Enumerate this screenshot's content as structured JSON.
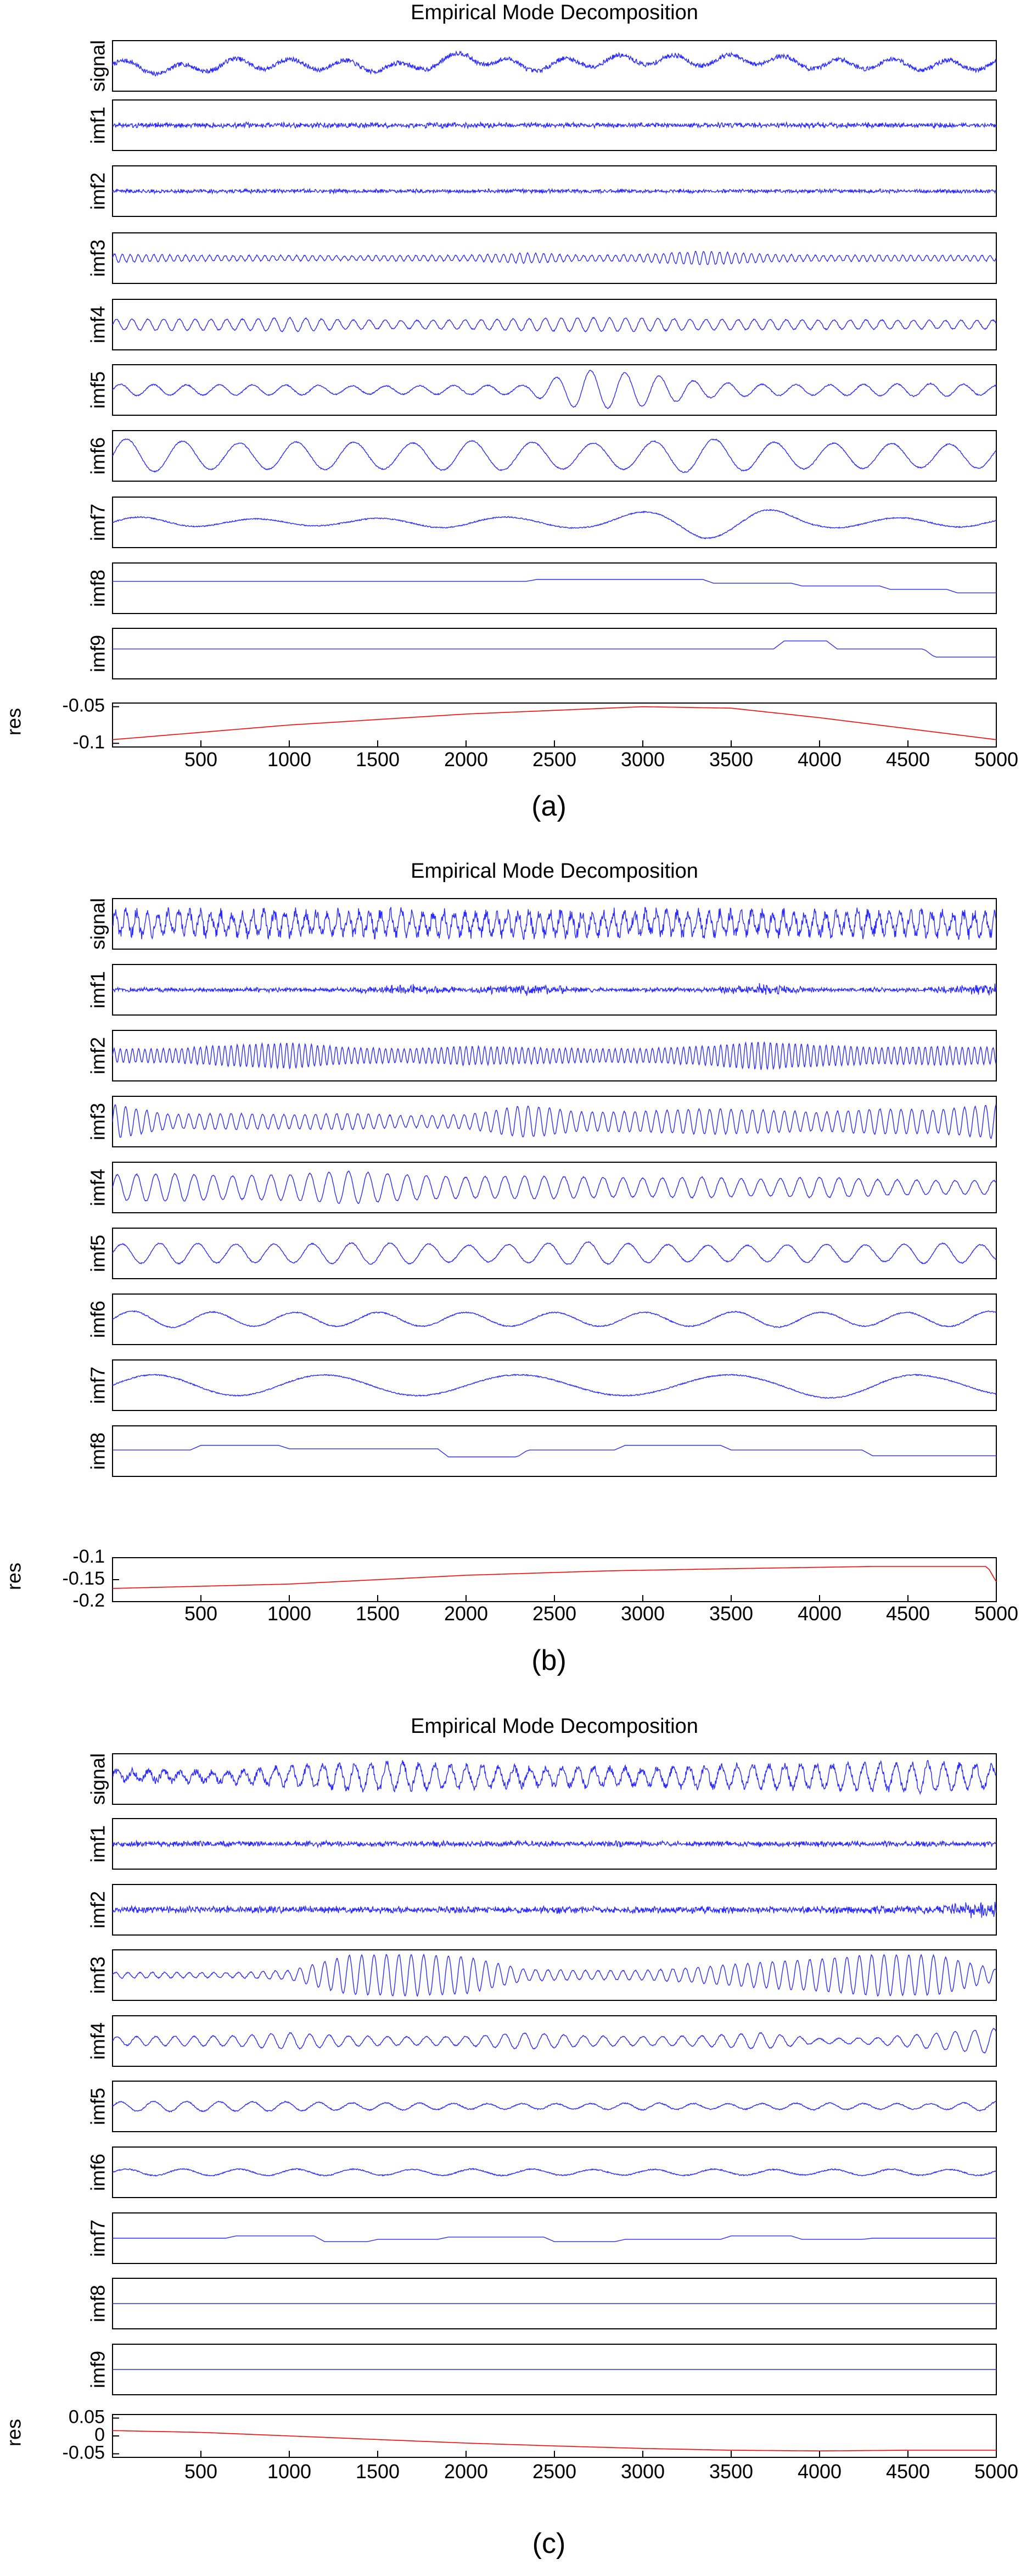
{
  "colors": {
    "trace": "#2a2aff",
    "residue": "#ff0000",
    "frame": "#000000"
  },
  "chart_data": [
    {
      "type": "line",
      "panel_label": "(a)",
      "title": "Empirical Mode Decomposition",
      "xlim": [
        0,
        5000
      ],
      "x_ticks": [
        "500",
        "1000",
        "1500",
        "2000",
        "2500",
        "3000",
        "3500",
        "4000",
        "4500",
        "5000"
      ],
      "series": [
        {
          "name": "signal",
          "kind": "signal",
          "level": [
            0.06,
            -0.2,
            0.1,
            0.08,
            0.02,
            -0.1,
            0.42,
            -0.05,
            0.18,
            0.28,
            0.22,
            0.3,
            0.05,
            0.1,
            0.02,
            0.05
          ],
          "osc": 0.22,
          "period": 310,
          "noise": 0.1
        },
        {
          "name": "imf1",
          "kind": "noise",
          "amp": 0.09
        },
        {
          "name": "imf2",
          "kind": "noise",
          "amp": 0.07
        },
        {
          "name": "imf3",
          "kind": "osc",
          "amp": [
            0.18,
            0.14,
            0.12,
            0.12,
            0.1,
            0.12,
            0.12,
            0.22,
            0.12,
            0.16,
            0.3,
            0.18,
            0.12,
            0.14,
            0.12,
            0.12
          ],
          "period": 45
        },
        {
          "name": "imf4",
          "kind": "osc",
          "amp": [
            0.22,
            0.25,
            0.22,
            0.3,
            0.2,
            0.18,
            0.2,
            0.25,
            0.3,
            0.28,
            0.22,
            0.22,
            0.2,
            0.2,
            0.18,
            0.2
          ],
          "period": 90
        },
        {
          "name": "imf5",
          "kind": "osc",
          "amp": [
            0.25,
            0.22,
            0.22,
            0.22,
            0.18,
            0.18,
            0.2,
            0.2,
            0.85,
            0.7,
            0.35,
            0.25,
            0.22,
            0.25,
            0.28,
            0.2
          ],
          "period": 190
        },
        {
          "name": "imf6",
          "kind": "osc",
          "amp": [
            0.75,
            0.65,
            0.55,
            0.6,
            0.6,
            0.55,
            0.65,
            0.6,
            0.55,
            0.6,
            0.75,
            0.6,
            0.55,
            0.55,
            0.5,
            0.55
          ],
          "period": 330
        },
        {
          "name": "imf7",
          "kind": "osc",
          "amp": [
            0.25,
            0.2,
            0.15,
            0.15,
            0.15,
            0.2,
            0.25,
            0.22,
            0.25,
            0.45,
            0.7,
            0.6,
            0.25,
            0.2,
            0.2,
            0.2
          ],
          "period": 700
        },
        {
          "name": "imf8",
          "kind": "step",
          "steps": [
            [
              0,
              0.3
            ],
            [
              2400,
              0.38
            ],
            [
              3400,
              0.22
            ],
            [
              3900,
              0.1
            ],
            [
              4400,
              -0.05
            ],
            [
              4780,
              -0.2
            ]
          ]
        },
        {
          "name": "imf9",
          "kind": "step",
          "steps": [
            [
              0,
              0.2
            ],
            [
              3800,
              0.55
            ],
            [
              4100,
              0.2
            ],
            [
              4650,
              -0.15
            ]
          ]
        },
        {
          "name": "res",
          "kind": "residue",
          "ylim": [
            -0.105,
            -0.045
          ],
          "y_ticks": [
            "-0.05",
            "-0.1"
          ],
          "y_tick_values": [
            -0.05,
            -0.1
          ],
          "curve": [
            [
              0,
              -0.095
            ],
            [
              1000,
              -0.075
            ],
            [
              2000,
              -0.06
            ],
            [
              3000,
              -0.05
            ],
            [
              3500,
              -0.052
            ],
            [
              4000,
              -0.065
            ],
            [
              4500,
              -0.08
            ],
            [
              5000,
              -0.095
            ]
          ]
        }
      ]
    },
    {
      "type": "line",
      "panel_label": "(b)",
      "title": "Empirical Mode Decomposition",
      "xlim": [
        0,
        5000
      ],
      "x_ticks": [
        "500",
        "1000",
        "1500",
        "2000",
        "2500",
        "3000",
        "3500",
        "4000",
        "4500",
        "5000"
      ],
      "series": [
        {
          "name": "signal",
          "kind": "signal",
          "level": [
            0.0,
            0.05,
            0.0,
            0.02,
            0.0,
            0.05,
            0.0,
            0.02,
            0.0,
            0.05,
            0.0,
            0.02,
            0.0,
            0.05,
            0.0,
            0.0
          ],
          "osc": 0.45,
          "period": 60,
          "noise": 0.25
        },
        {
          "name": "imf1",
          "kind": "noise",
          "amp": [
            0.08,
            0.08,
            0.08,
            0.08,
            0.08,
            0.2,
            0.08,
            0.2,
            0.08,
            0.08,
            0.08,
            0.2,
            0.08,
            0.08,
            0.12,
            0.2
          ]
        },
        {
          "name": "imf2",
          "kind": "osc",
          "amp": [
            0.3,
            0.3,
            0.45,
            0.55,
            0.35,
            0.3,
            0.4,
            0.35,
            0.3,
            0.3,
            0.4,
            0.6,
            0.45,
            0.35,
            0.4,
            0.35
          ],
          "period": 35
        },
        {
          "name": "imf3",
          "kind": "osc",
          "amp": [
            0.75,
            0.3,
            0.35,
            0.3,
            0.35,
            0.25,
            0.3,
            0.7,
            0.4,
            0.45,
            0.55,
            0.5,
            0.4,
            0.55,
            0.5,
            0.75
          ],
          "period": 60
        },
        {
          "name": "imf4",
          "kind": "osc",
          "amp": [
            0.55,
            0.6,
            0.5,
            0.55,
            0.7,
            0.55,
            0.45,
            0.5,
            0.45,
            0.4,
            0.45,
            0.35,
            0.45,
            0.35,
            0.3,
            0.3
          ],
          "period": 110
        },
        {
          "name": "imf5",
          "kind": "osc",
          "amp": [
            0.4,
            0.45,
            0.4,
            0.4,
            0.45,
            0.45,
            0.35,
            0.4,
            0.5,
            0.4,
            0.35,
            0.35,
            0.4,
            0.35,
            0.45,
            0.35
          ],
          "period": 220
        },
        {
          "name": "imf6",
          "kind": "osc",
          "amp": [
            0.35,
            0.35,
            0.3,
            0.3,
            0.3,
            0.3,
            0.3,
            0.3,
            0.3,
            0.3,
            0.3,
            0.35,
            0.3,
            0.3,
            0.3,
            0.35
          ],
          "period": 480
        },
        {
          "name": "imf7",
          "kind": "osc",
          "amp": [
            0.45,
            0.45,
            0.45,
            0.45,
            0.45,
            0.45,
            0.45,
            0.45,
            0.45,
            0.45,
            0.45,
            0.45,
            0.55,
            0.55,
            0.4,
            0.4
          ],
          "period": 1050
        },
        {
          "name": "imf8",
          "kind": "step",
          "steps": [
            [
              0,
              0.05
            ],
            [
              500,
              0.25
            ],
            [
              1000,
              0.1
            ],
            [
              1900,
              -0.25
            ],
            [
              2350,
              0.05
            ],
            [
              2900,
              0.25
            ],
            [
              3500,
              0.05
            ],
            [
              4300,
              -0.2
            ]
          ]
        },
        {
          "name": "res",
          "kind": "residue",
          "ylim": [
            -0.2,
            -0.1
          ],
          "y_ticks": [
            "-0.1",
            "-0.15",
            "-0.2"
          ],
          "y_tick_values": [
            -0.1,
            -0.15,
            -0.2
          ],
          "curve": [
            [
              0,
              -0.17
            ],
            [
              1000,
              -0.16
            ],
            [
              1500,
              -0.15
            ],
            [
              2000,
              -0.14
            ],
            [
              2800,
              -0.13
            ],
            [
              3500,
              -0.125
            ],
            [
              4300,
              -0.12
            ],
            [
              4950,
              -0.12
            ],
            [
              5000,
              -0.155
            ]
          ]
        }
      ]
    },
    {
      "type": "line",
      "panel_label": "(c)",
      "title": "Empirical Mode Decomposition",
      "xlim": [
        0,
        5000
      ],
      "x_ticks": [
        "500",
        "1000",
        "1500",
        "2000",
        "2500",
        "3000",
        "3500",
        "4000",
        "4500",
        "5000"
      ],
      "series": [
        {
          "name": "signal",
          "kind": "signal",
          "level": [
            0.15,
            0.12,
            0.1,
            0.12,
            0.1,
            0.12,
            0.1,
            0.1,
            0.1,
            0.08,
            0.1,
            0.12,
            0.1,
            0.1,
            0.08,
            0.1
          ],
          "osc": [
            0.2,
            0.2,
            0.22,
            0.4,
            0.55,
            0.55,
            0.45,
            0.4,
            0.4,
            0.35,
            0.45,
            0.5,
            0.5,
            0.55,
            0.6,
            0.45
          ],
          "period": 90,
          "noise": 0.15
        },
        {
          "name": "imf1",
          "kind": "noise",
          "amp": 0.1
        },
        {
          "name": "imf2",
          "kind": "noise",
          "amp": [
            0.12,
            0.12,
            0.12,
            0.12,
            0.12,
            0.12,
            0.12,
            0.12,
            0.12,
            0.12,
            0.12,
            0.12,
            0.12,
            0.14,
            0.14,
            0.35
          ]
        },
        {
          "name": "imf3",
          "kind": "osc",
          "amp": [
            0.12,
            0.12,
            0.1,
            0.2,
            0.85,
            0.9,
            0.8,
            0.25,
            0.2,
            0.2,
            0.35,
            0.55,
            0.7,
            0.9,
            0.85,
            0.25
          ],
          "period": 70
        },
        {
          "name": "imf4",
          "kind": "osc",
          "amp": [
            0.18,
            0.2,
            0.22,
            0.35,
            0.22,
            0.18,
            0.2,
            0.35,
            0.22,
            0.2,
            0.22,
            0.35,
            0.1,
            0.15,
            0.35,
            0.55
          ],
          "period": 110
        },
        {
          "name": "imf5",
          "kind": "osc",
          "amp": [
            0.2,
            0.22,
            0.2,
            0.2,
            0.15,
            0.15,
            0.12,
            0.12,
            0.12,
            0.15,
            0.12,
            0.12,
            0.15,
            0.12,
            0.12,
            0.2
          ],
          "period": 190
        },
        {
          "name": "imf6",
          "kind": "osc",
          "amp": [
            0.14,
            0.14,
            0.14,
            0.14,
            0.14,
            0.12,
            0.14,
            0.14,
            0.12,
            0.12,
            0.14,
            0.12,
            0.12,
            0.14,
            0.12,
            0.14
          ],
          "period": 330
        },
        {
          "name": "imf7",
          "kind": "step",
          "steps": [
            [
              0,
              0.0
            ],
            [
              700,
              0.1
            ],
            [
              1200,
              -0.15
            ],
            [
              1500,
              -0.05
            ],
            [
              1900,
              0.05
            ],
            [
              2500,
              -0.15
            ],
            [
              2900,
              -0.05
            ],
            [
              3500,
              0.1
            ],
            [
              3900,
              -0.05
            ],
            [
              4300,
              0.0
            ]
          ]
        },
        {
          "name": "imf8",
          "kind": "step",
          "steps": [
            [
              0,
              0.0
            ]
          ]
        },
        {
          "name": "imf9",
          "kind": "step",
          "steps": [
            [
              0,
              0.0
            ]
          ]
        },
        {
          "name": "res",
          "kind": "residue",
          "ylim": [
            -0.06,
            0.06
          ],
          "y_ticks": [
            "0.05",
            "0",
            "-0.05"
          ],
          "y_tick_values": [
            0.05,
            0,
            -0.05
          ],
          "curve": [
            [
              0,
              0.015
            ],
            [
              500,
              0.01
            ],
            [
              1000,
              0.0
            ],
            [
              1500,
              -0.01
            ],
            [
              2000,
              -0.02
            ],
            [
              2500,
              -0.028
            ],
            [
              3000,
              -0.035
            ],
            [
              3500,
              -0.04
            ],
            [
              4000,
              -0.042
            ],
            [
              4500,
              -0.04
            ],
            [
              5000,
              -0.04
            ]
          ]
        }
      ]
    }
  ]
}
